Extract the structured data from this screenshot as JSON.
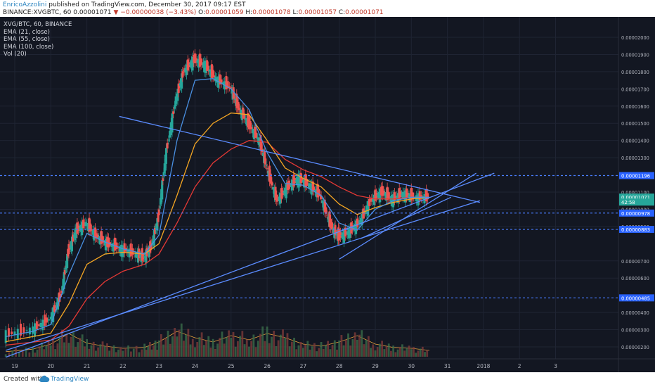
{
  "header": {
    "author": "EnricoAzzolini",
    "published": " published on TradingView.com, December 30, 2017 09:17 EST",
    "symbol_line": "BINANCE:XVGBTC, 60",
    "change": "−0.00000038 (−3.43%)",
    "last": "0.00001071",
    "ohlc_o_label": "O:",
    "ohlc_o": "0.00001059",
    "ohlc_h_label": "H:",
    "ohlc_h": "0.00001078",
    "ohlc_l_label": "L:",
    "ohlc_l": "0.00001057",
    "ohlc_c_label": "C:",
    "ohlc_c": "0.00001071"
  },
  "legend": {
    "title": "XVG/BTC, 60, BINANCE",
    "ema21": "EMA (21, close)",
    "ema55": "EMA (55, close)",
    "ema100": "EMA (100, close)",
    "vol": "Vol (20)"
  },
  "footer": {
    "created": "Created with",
    "brand": "TradingView"
  },
  "chart_data": {
    "type": "candlestick",
    "y_ticks": [
      "0.00002000",
      "0.00001900",
      "0.00001800",
      "0.00001700",
      "0.00001600",
      "0.00001500",
      "0.00001400",
      "0.00001300",
      "0.00001100",
      "0.00001000",
      "0.00000900",
      "0.00000700",
      "0.00000600",
      "0.00000400",
      "0.00000300",
      "0.00000200"
    ],
    "x_ticks": [
      "19",
      "20",
      "21",
      "22",
      "23",
      "24",
      "25",
      "26",
      "27",
      "28",
      "29",
      "30",
      "31",
      "2018",
      "2",
      "3"
    ],
    "price_labels": [
      {
        "value": "0.00001196",
        "y": 1.196e-05,
        "color": "#2962ff"
      },
      {
        "value": "0.00001071",
        "y": 1.071e-05,
        "color": "#26a69a"
      },
      {
        "value": "42:58",
        "y": 1.042e-05,
        "color": "#26a69a"
      },
      {
        "value": "0.00000978",
        "y": 9.78e-06,
        "color": "#2962ff"
      },
      {
        "value": "0.00000883",
        "y": 8.83e-06,
        "color": "#2962ff"
      },
      {
        "value": "0.00000485",
        "y": 4.85e-06,
        "color": "#2962ff"
      }
    ],
    "horizontal_levels": [
      1.196e-05,
      9.78e-06,
      8.83e-06,
      4.85e-06
    ],
    "price_path": [
      [
        18.75,
        2.7e-06
      ],
      [
        19.5,
        3e-06
      ],
      [
        20.0,
        3.6e-06
      ],
      [
        20.3,
        5e-06
      ],
      [
        20.5,
        7.5e-06
      ],
      [
        20.7,
        8.7e-06
      ],
      [
        21.0,
        9.2e-06
      ],
      [
        21.3,
        8.4e-06
      ],
      [
        21.6,
        8e-06
      ],
      [
        22.0,
        7.7e-06
      ],
      [
        22.4,
        7.4e-06
      ],
      [
        22.6,
        7.2e-06
      ],
      [
        22.8,
        7.8e-06
      ],
      [
        23.0,
        9.5e-06
      ],
      [
        23.2,
        1.3e-05
      ],
      [
        23.5,
        1.65e-05
      ],
      [
        23.7,
        1.8e-05
      ],
      [
        24.0,
        1.87e-05
      ],
      [
        24.3,
        1.84e-05
      ],
      [
        24.6,
        1.76e-05
      ],
      [
        25.0,
        1.71e-05
      ],
      [
        25.2,
        1.6e-05
      ],
      [
        25.5,
        1.5e-05
      ],
      [
        25.8,
        1.4e-05
      ],
      [
        26.0,
        1.25e-05
      ],
      [
        26.3,
        1.05e-05
      ],
      [
        26.6,
        1.13e-05
      ],
      [
        26.9,
        1.18e-05
      ],
      [
        27.2,
        1.14e-05
      ],
      [
        27.5,
        1.08e-05
      ],
      [
        27.8,
        9e-06
      ],
      [
        28.0,
        8.4e-06
      ],
      [
        28.3,
        8.7e-06
      ],
      [
        28.6,
        9.3e-06
      ],
      [
        28.9,
        1.05e-05
      ],
      [
        29.2,
        1.1e-05
      ],
      [
        29.5,
        1.06e-05
      ],
      [
        29.8,
        1.09e-05
      ],
      [
        30.1,
        1.07e-05
      ],
      [
        30.5,
        1.07e-05
      ]
    ],
    "ema21": [
      [
        18.75,
        2.6e-06
      ],
      [
        19.5,
        2.9e-06
      ],
      [
        20.0,
        3.3e-06
      ],
      [
        20.5,
        6.2e-06
      ],
      [
        21.0,
        8.6e-06
      ],
      [
        21.5,
        8.1e-06
      ],
      [
        22.0,
        7.7e-06
      ],
      [
        22.6,
        7.4e-06
      ],
      [
        23.0,
        8.5e-06
      ],
      [
        23.5,
        1.4e-05
      ],
      [
        24.0,
        1.75e-05
      ],
      [
        24.5,
        1.76e-05
      ],
      [
        25.0,
        1.7e-05
      ],
      [
        25.5,
        1.58e-05
      ],
      [
        26.0,
        1.33e-05
      ],
      [
        26.5,
        1.15e-05
      ],
      [
        27.0,
        1.14e-05
      ],
      [
        27.5,
        1.08e-05
      ],
      [
        28.0,
        9.2e-06
      ],
      [
        28.5,
        8.8e-06
      ],
      [
        29.0,
        1e-05
      ],
      [
        29.5,
        1.05e-05
      ],
      [
        30.0,
        1.07e-05
      ],
      [
        30.5,
        1.07e-05
      ]
    ],
    "ema55": [
      [
        18.75,
        2.3e-06
      ],
      [
        20.0,
        2.8e-06
      ],
      [
        20.5,
        4.5e-06
      ],
      [
        21.0,
        6.8e-06
      ],
      [
        21.5,
        7.4e-06
      ],
      [
        22.0,
        7.5e-06
      ],
      [
        22.6,
        7.4e-06
      ],
      [
        23.0,
        8e-06
      ],
      [
        23.5,
        1.08e-05
      ],
      [
        24.0,
        1.38e-05
      ],
      [
        24.5,
        1.5e-05
      ],
      [
        25.0,
        1.56e-05
      ],
      [
        25.5,
        1.55e-05
      ],
      [
        26.0,
        1.4e-05
      ],
      [
        26.5,
        1.24e-05
      ],
      [
        27.0,
        1.18e-05
      ],
      [
        27.5,
        1.13e-05
      ],
      [
        28.0,
        1.03e-05
      ],
      [
        28.5,
        9.7e-06
      ],
      [
        29.0,
        1.01e-05
      ],
      [
        29.5,
        1.04e-05
      ],
      [
        30.0,
        1.06e-05
      ],
      [
        30.5,
        1.07e-05
      ]
    ],
    "ema100": [
      [
        18.75,
        2.1e-06
      ],
      [
        20.0,
        2.4e-06
      ],
      [
        20.5,
        3.2e-06
      ],
      [
        21.0,
        4.8e-06
      ],
      [
        21.5,
        5.8e-06
      ],
      [
        22.0,
        6.4e-06
      ],
      [
        22.6,
        6.8e-06
      ],
      [
        23.0,
        7.4e-06
      ],
      [
        23.5,
        9.2e-06
      ],
      [
        24.0,
        1.13e-05
      ],
      [
        24.5,
        1.27e-05
      ],
      [
        25.0,
        1.35e-05
      ],
      [
        25.5,
        1.4e-05
      ],
      [
        26.0,
        1.39e-05
      ],
      [
        26.5,
        1.29e-05
      ],
      [
        27.0,
        1.23e-05
      ],
      [
        27.5,
        1.19e-05
      ],
      [
        28.0,
        1.13e-05
      ],
      [
        28.5,
        1.08e-05
      ],
      [
        29.0,
        1.06e-05
      ],
      [
        29.5,
        1.06e-05
      ],
      [
        30.0,
        1.07e-05
      ],
      [
        30.5,
        1.07e-05
      ]
    ],
    "trendlines": [
      {
        "from": [
          18.75,
          1.8e-06
        ],
        "to": [
          31.9,
          1.05e-05
        ]
      },
      {
        "from": [
          18.75,
          1.4e-06
        ],
        "to": [
          32.3,
          1.21e-05
        ]
      },
      {
        "from": [
          21.9,
          1.54e-05
        ],
        "to": [
          31.9,
          1.04e-05
        ]
      },
      {
        "from": [
          28.0,
          7.1e-06
        ],
        "to": [
          31.8,
          1.21e-05
        ]
      },
      {
        "from": [
          28.6,
          8.3e-06
        ],
        "to": [
          31.1,
          1.07e-05
        ]
      }
    ],
    "volume_path": [
      [
        18.75,
        0.12
      ],
      [
        19.5,
        0.18
      ],
      [
        20.0,
        0.3
      ],
      [
        20.5,
        0.55
      ],
      [
        21.0,
        0.32
      ],
      [
        21.5,
        0.25
      ],
      [
        22.0,
        0.2
      ],
      [
        22.6,
        0.22
      ],
      [
        23.0,
        0.35
      ],
      [
        23.5,
        0.6
      ],
      [
        24.0,
        0.45
      ],
      [
        24.5,
        0.35
      ],
      [
        25.0,
        0.5
      ],
      [
        25.5,
        0.4
      ],
      [
        26.0,
        0.55
      ],
      [
        26.5,
        0.45
      ],
      [
        27.0,
        0.3
      ],
      [
        27.5,
        0.25
      ],
      [
        28.0,
        0.35
      ],
      [
        28.5,
        0.5
      ],
      [
        29.0,
        0.3
      ],
      [
        29.5,
        0.22
      ],
      [
        30.0,
        0.2
      ],
      [
        30.5,
        0.15
      ]
    ]
  }
}
